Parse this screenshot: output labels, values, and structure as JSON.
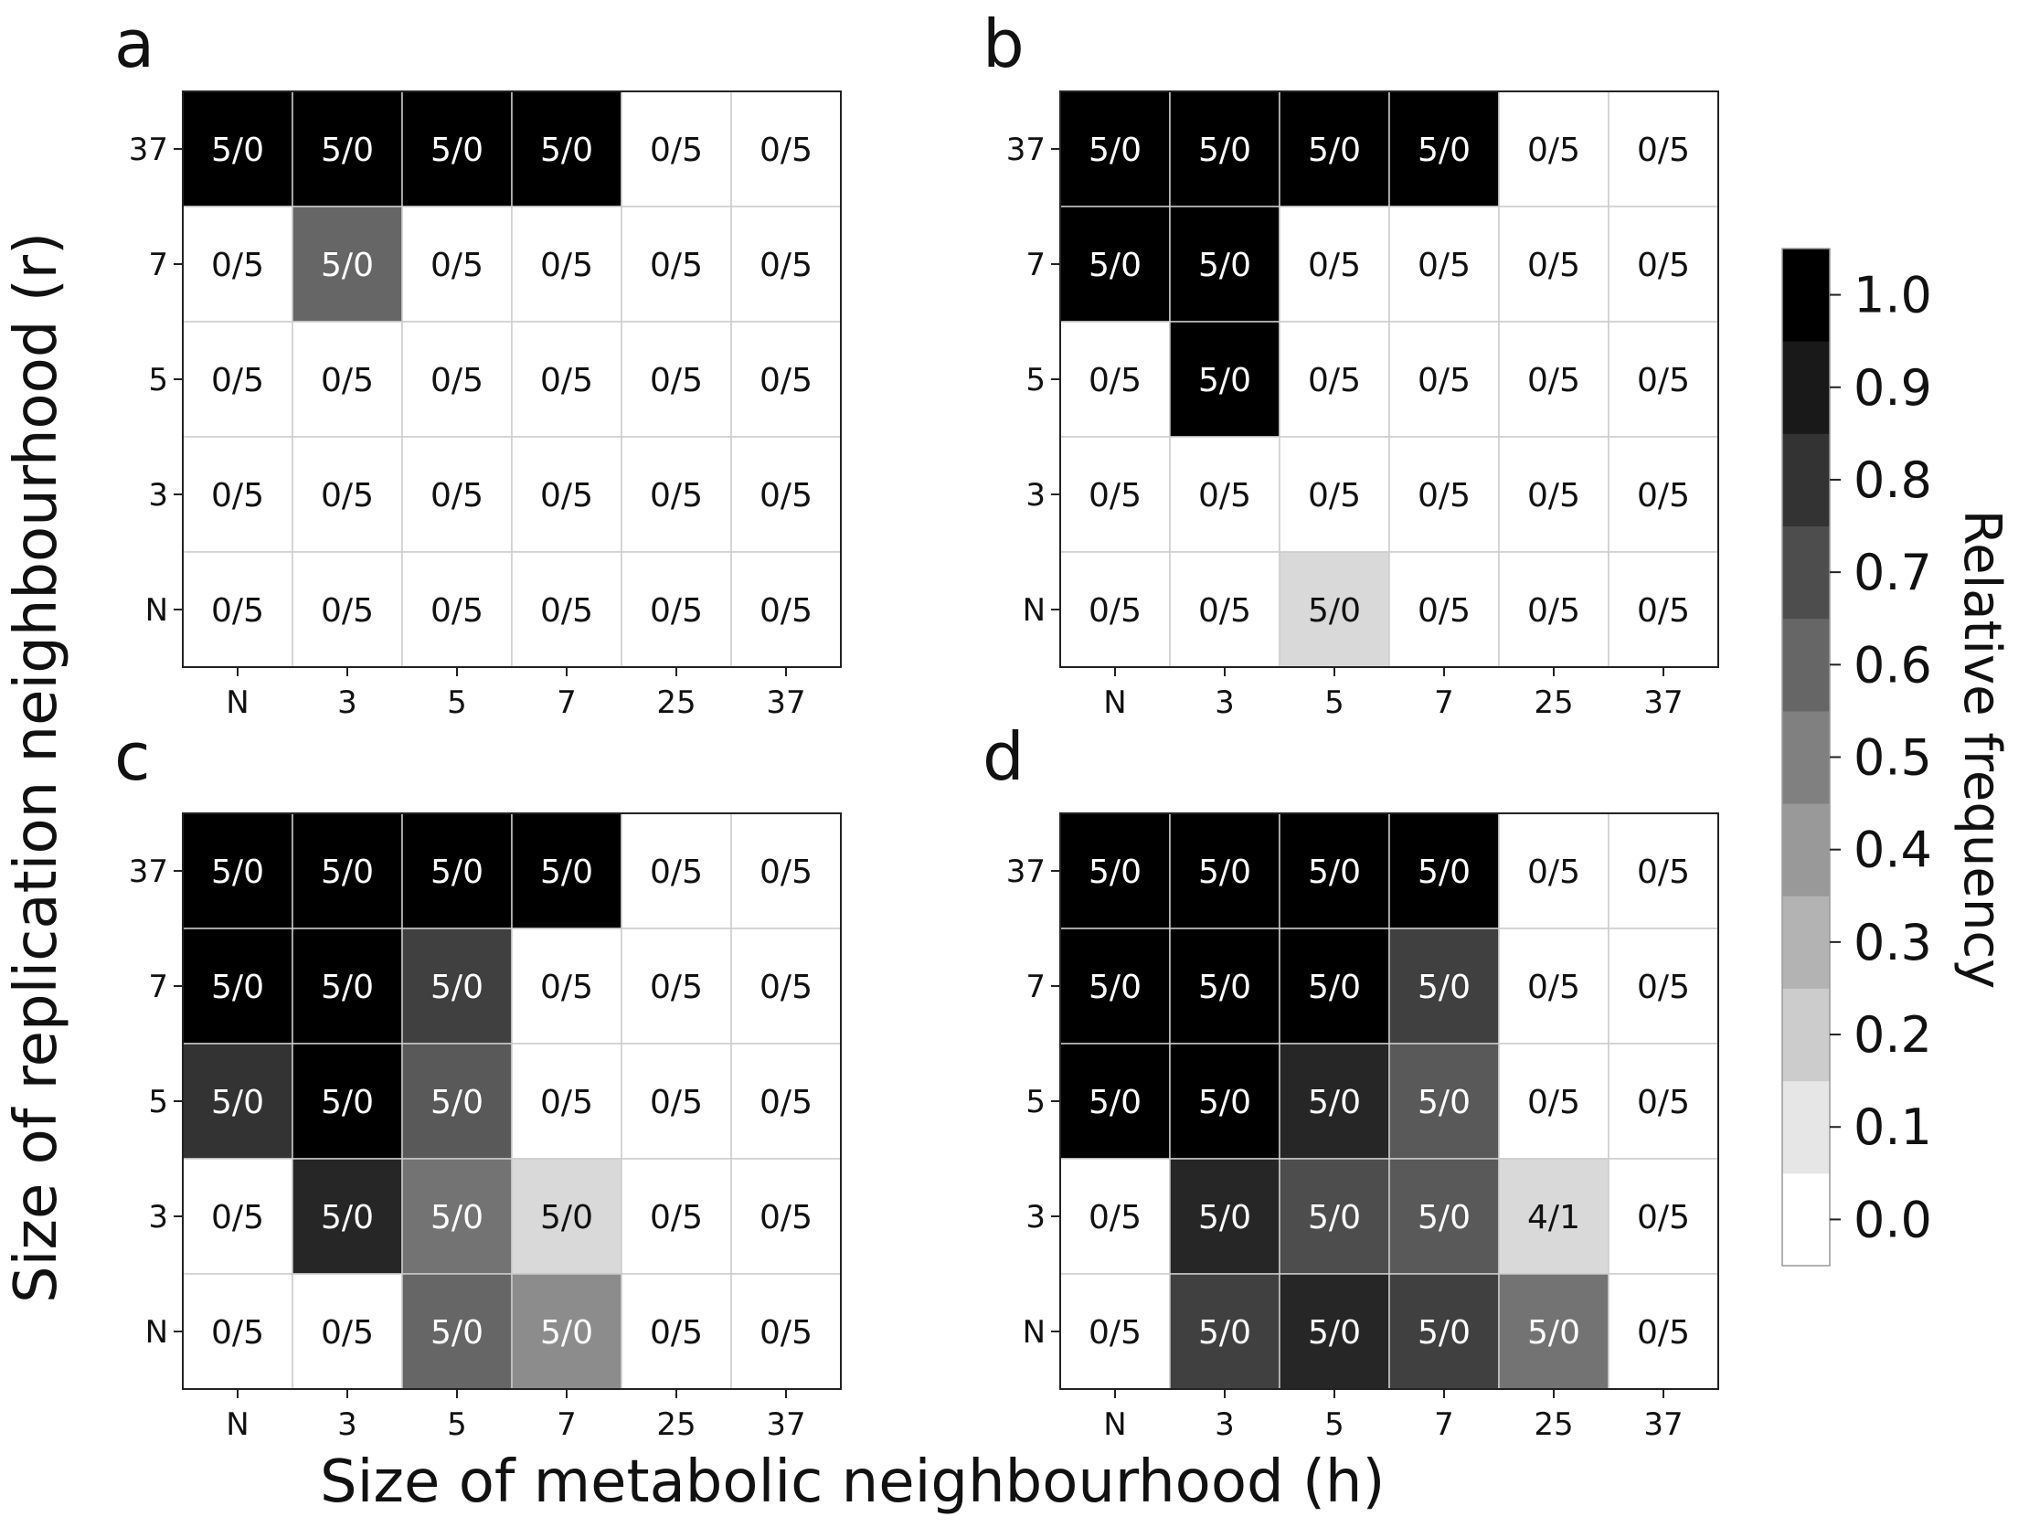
{
  "chart_data": {
    "type": "heatmap",
    "xlabel": "Size of metabolic neighbourhood (h)",
    "ylabel": "Size of replication neighbourhood (r)",
    "x_categories": [
      "N",
      "3",
      "5",
      "7",
      "25",
      "37"
    ],
    "y_categories_top_to_bottom": [
      "37",
      "7",
      "5",
      "3",
      "N"
    ],
    "colorbar": {
      "label": "Relative frequency",
      "range": [
        0.0,
        1.0
      ],
      "ticks": [
        "0.0",
        "0.1",
        "0.2",
        "0.3",
        "0.4",
        "0.5",
        "0.6",
        "0.7",
        "0.8",
        "0.9",
        "1.0"
      ],
      "low_color": "#ffffff",
      "high_color": "#000000"
    },
    "panels": [
      {
        "label": "a",
        "labels": [
          [
            "5/0",
            "5/0",
            "5/0",
            "5/0",
            "0/5",
            "0/5"
          ],
          [
            "0/5",
            "5/0",
            "0/5",
            "0/5",
            "0/5",
            "0/5"
          ],
          [
            "0/5",
            "0/5",
            "0/5",
            "0/5",
            "0/5",
            "0/5"
          ],
          [
            "0/5",
            "0/5",
            "0/5",
            "0/5",
            "0/5",
            "0/5"
          ],
          [
            "0/5",
            "0/5",
            "0/5",
            "0/5",
            "0/5",
            "0/5"
          ]
        ],
        "values": [
          [
            1.0,
            1.0,
            1.0,
            1.0,
            0.0,
            0.0
          ],
          [
            0.0,
            0.6,
            0.0,
            0.0,
            0.0,
            0.0
          ],
          [
            0.0,
            0.0,
            0.0,
            0.0,
            0.0,
            0.0
          ],
          [
            0.0,
            0.0,
            0.0,
            0.0,
            0.0,
            0.0
          ],
          [
            0.0,
            0.0,
            0.0,
            0.0,
            0.0,
            0.0
          ]
        ]
      },
      {
        "label": "b",
        "labels": [
          [
            "5/0",
            "5/0",
            "5/0",
            "5/0",
            "0/5",
            "0/5"
          ],
          [
            "5/0",
            "5/0",
            "0/5",
            "0/5",
            "0/5",
            "0/5"
          ],
          [
            "0/5",
            "5/0",
            "0/5",
            "0/5",
            "0/5",
            "0/5"
          ],
          [
            "0/5",
            "0/5",
            "0/5",
            "0/5",
            "0/5",
            "0/5"
          ],
          [
            "0/5",
            "0/5",
            "5/0",
            "0/5",
            "0/5",
            "0/5"
          ]
        ],
        "values": [
          [
            1.0,
            1.0,
            1.0,
            1.0,
            0.0,
            0.0
          ],
          [
            1.0,
            1.0,
            0.0,
            0.0,
            0.0,
            0.0
          ],
          [
            0.0,
            1.0,
            0.0,
            0.0,
            0.0,
            0.0
          ],
          [
            0.0,
            0.0,
            0.0,
            0.0,
            0.0,
            0.0
          ],
          [
            0.0,
            0.0,
            0.15,
            0.0,
            0.0,
            0.0
          ]
        ]
      },
      {
        "label": "c",
        "labels": [
          [
            "5/0",
            "5/0",
            "5/0",
            "5/0",
            "0/5",
            "0/5"
          ],
          [
            "5/0",
            "5/0",
            "5/0",
            "0/5",
            "0/5",
            "0/5"
          ],
          [
            "5/0",
            "5/0",
            "5/0",
            "0/5",
            "0/5",
            "0/5"
          ],
          [
            "0/5",
            "5/0",
            "5/0",
            "5/0",
            "0/5",
            "0/5"
          ],
          [
            "0/5",
            "0/5",
            "5/0",
            "5/0",
            "0/5",
            "0/5"
          ]
        ],
        "values": [
          [
            1.0,
            1.0,
            1.0,
            1.0,
            0.0,
            0.0
          ],
          [
            1.0,
            1.0,
            0.75,
            0.0,
            0.0,
            0.0
          ],
          [
            0.8,
            1.0,
            0.65,
            0.0,
            0.0,
            0.0
          ],
          [
            0.0,
            0.85,
            0.55,
            0.15,
            0.0,
            0.0
          ],
          [
            0.0,
            0.0,
            0.6,
            0.45,
            0.0,
            0.0
          ]
        ]
      },
      {
        "label": "d",
        "labels": [
          [
            "5/0",
            "5/0",
            "5/0",
            "5/0",
            "0/5",
            "0/5"
          ],
          [
            "5/0",
            "5/0",
            "5/0",
            "5/0",
            "0/5",
            "0/5"
          ],
          [
            "5/0",
            "5/0",
            "5/0",
            "5/0",
            "0/5",
            "0/5"
          ],
          [
            "0/5",
            "5/0",
            "5/0",
            "5/0",
            "4/1",
            "0/5"
          ],
          [
            "0/5",
            "5/0",
            "5/0",
            "5/0",
            "5/0",
            "0/5"
          ]
        ],
        "values": [
          [
            1.0,
            1.0,
            1.0,
            1.0,
            0.0,
            0.0
          ],
          [
            1.0,
            1.0,
            1.0,
            0.75,
            0.0,
            0.0
          ],
          [
            1.0,
            1.0,
            0.85,
            0.65,
            0.0,
            0.0
          ],
          [
            0.0,
            0.85,
            0.7,
            0.65,
            0.15,
            0.0
          ],
          [
            0.0,
            0.75,
            0.85,
            0.75,
            0.55,
            0.0
          ]
        ]
      }
    ]
  }
}
